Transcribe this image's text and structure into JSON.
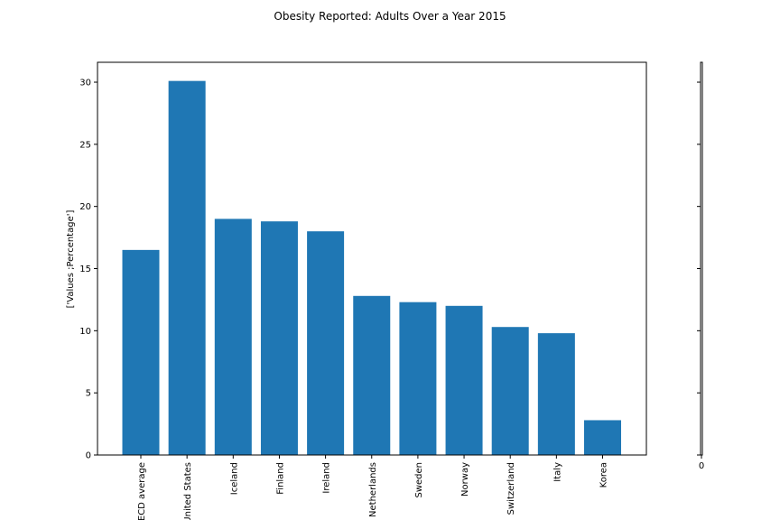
{
  "chart_data": [
    {
      "type": "bar",
      "title": "Obesity Reported: Adults Over a Year 2015",
      "y_label": "['Values ;Percentage']",
      "categories": [
        "OECD average",
        "United States",
        "Iceland",
        "Finland",
        "Ireland",
        "Netherlands",
        "Sweden",
        "Norway",
        "Switzerland",
        "Italy",
        "Korea"
      ],
      "values": [
        16.5,
        30.1,
        19.0,
        18.8,
        18.0,
        12.8,
        12.3,
        12.0,
        10.3,
        9.8,
        2.8
      ],
      "color": "#1f77b4",
      "ylim": [
        0,
        31.6
      ],
      "yticks": [
        0,
        5,
        10,
        15,
        20,
        25,
        30
      ],
      "grid": false
    },
    {
      "type": "empty",
      "xticks": [
        0
      ]
    }
  ]
}
